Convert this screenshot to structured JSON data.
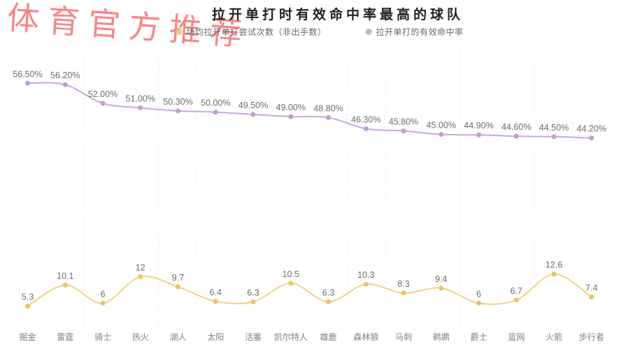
{
  "watermark": {
    "text": "体育官方推荐"
  },
  "chart_data": {
    "type": "line",
    "title": "拉开单打时有效命中率最高的球队",
    "legend_position": "top",
    "grid": "vertical-dotted",
    "categories": [
      "掘金",
      "雷霆",
      "骑士",
      "热火",
      "湖人",
      "太阳",
      "活塞",
      "凯尔特人",
      "雄鹿",
      "森林狼",
      "马刺",
      "鹈鹕",
      "爵士",
      "篮网",
      "火箭",
      "步行者"
    ],
    "series": [
      {
        "name": "场均拉开单打尝试次数（非出手数）",
        "values": [
          5.3,
          10.1,
          6,
          12,
          9.7,
          6.4,
          6.3,
          10.5,
          6.3,
          10.3,
          8.3,
          9.4,
          6,
          6.7,
          12.6,
          7.4
        ],
        "labels": [
          "5.3",
          "10.1",
          "6",
          "12",
          "9.7",
          "6.4",
          "6.3",
          "10.5",
          "6.3",
          "10.3",
          "8.3",
          "9.4",
          "6",
          "6.7",
          "12.6",
          "7.4"
        ],
        "ylim": [
          5.3,
          12.6
        ],
        "line_color": "#eed089",
        "marker_color": "#ecc25f"
      },
      {
        "name": "拉开单打的有效命中率",
        "values": [
          56.5,
          56.2,
          52.0,
          51.0,
          50.3,
          50.0,
          49.5,
          49.0,
          48.8,
          46.3,
          45.8,
          45.0,
          44.9,
          44.6,
          44.5,
          44.2
        ],
        "labels": [
          "56.50%",
          "56.20%",
          "52.00%",
          "51.00%",
          "50.30%",
          "50.00%",
          "49.50%",
          "49.00%",
          "48.80%",
          "46.30%",
          "45.80%",
          "45.00%",
          "44.90%",
          "44.60%",
          "44.50%",
          "44.20%"
        ],
        "ylim": [
          44.2,
          56.5
        ],
        "line_color": "#c9a7dc",
        "marker_color": "#c09bd5"
      }
    ],
    "label_color": "#6b6b6b",
    "axis_label_color": "#7f7f7f",
    "grid_color": "#ececec",
    "title_color": "#212121",
    "watermark_color": "#f56a6a"
  }
}
